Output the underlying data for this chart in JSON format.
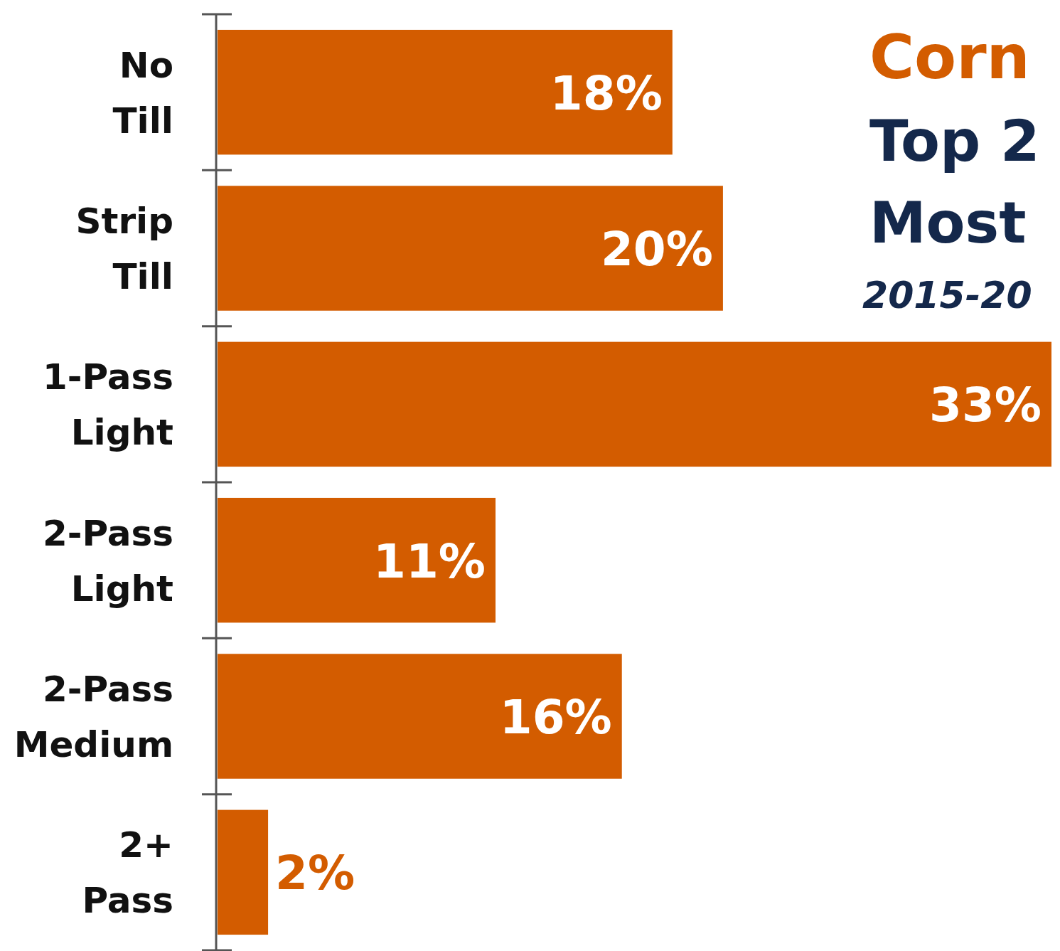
{
  "chart_data": {
    "type": "bar",
    "orientation": "horizontal",
    "title": "Corn",
    "subtitle": "Top 2\nMost",
    "annotations": [
      "2015-20"
    ],
    "categories": [
      "No Till",
      "Strip Till",
      "1-Pass Light",
      "2-Pass Light",
      "2-Pass Medium",
      "2+ Pass"
    ],
    "values": [
      18,
      20,
      33,
      11,
      16,
      2
    ],
    "color": "#d35c00",
    "data_labels": true,
    "value_labels": [
      "18%",
      "20%",
      "33%",
      "11%",
      "16%",
      "2%"
    ]
  }
}
